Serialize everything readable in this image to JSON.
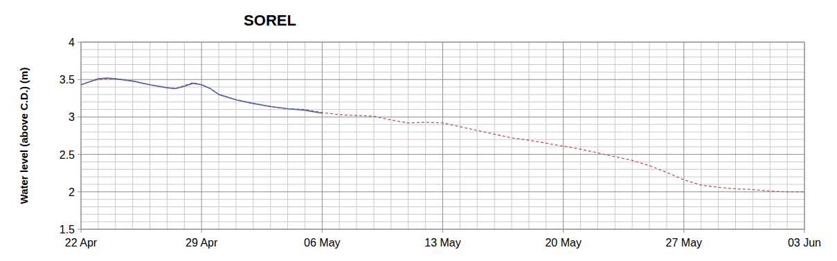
{
  "chart_data": {
    "type": "line",
    "title": "SOREL",
    "ylabel": "Water level (above C.D.) (m)",
    "x": [
      0,
      0.5,
      1,
      1.5,
      2,
      3,
      4,
      5,
      5.5,
      6,
      6.5,
      7,
      7.5,
      8,
      9,
      10,
      11,
      12,
      13,
      14,
      15,
      16,
      17,
      18,
      19,
      20,
      21,
      22,
      23,
      24,
      25,
      26,
      27,
      28,
      29,
      30,
      31,
      32,
      33,
      34,
      35,
      36,
      37,
      38,
      39,
      40,
      41,
      42
    ],
    "series": [
      {
        "color": "#c0504d",
        "line_style": "dashed",
        "values": [
          3.43,
          3.47,
          3.5,
          3.51,
          3.51,
          3.48,
          3.43,
          3.39,
          3.38,
          3.42,
          3.46,
          3.43,
          3.38,
          3.3,
          3.23,
          3.18,
          3.14,
          3.11,
          3.1,
          3.06,
          3.03,
          3.02,
          3.01,
          2.96,
          2.92,
          2.93,
          2.92,
          2.87,
          2.82,
          2.77,
          2.72,
          2.69,
          2.65,
          2.61,
          2.57,
          2.52,
          2.47,
          2.42,
          2.35,
          2.26,
          2.16,
          2.09,
          2.06,
          2.04,
          2.03,
          2.01,
          2.0,
          2.0
        ]
      },
      {
        "color": "#4f62a8",
        "line_style": "solid",
        "values": [
          3.43,
          3.47,
          3.51,
          3.52,
          3.51,
          3.48,
          3.43,
          3.39,
          3.38,
          3.41,
          3.45,
          3.43,
          3.38,
          3.3,
          3.23,
          3.18,
          3.14,
          3.11,
          3.09,
          3.05,
          null,
          null,
          null,
          null,
          null,
          null,
          null,
          null,
          null,
          null,
          null,
          null,
          null,
          null,
          null,
          null,
          null,
          null,
          null,
          null,
          null,
          null,
          null,
          null,
          null,
          null,
          null,
          null
        ]
      }
    ],
    "xlim": [
      0,
      42
    ],
    "xticks": [
      {
        "value": 0,
        "label": "22 Apr"
      },
      {
        "value": 7,
        "label": "29 Apr"
      },
      {
        "value": 14,
        "label": "06 May"
      },
      {
        "value": 21,
        "label": "13 May"
      },
      {
        "value": 28,
        "label": "20 May"
      },
      {
        "value": 35,
        "label": "27 May"
      },
      {
        "value": 42,
        "label": "03 Jun"
      }
    ],
    "ylim": [
      1.5,
      4
    ],
    "yticks": [
      1.5,
      2,
      2.5,
      3,
      3.5,
      4
    ],
    "grid": true
  }
}
